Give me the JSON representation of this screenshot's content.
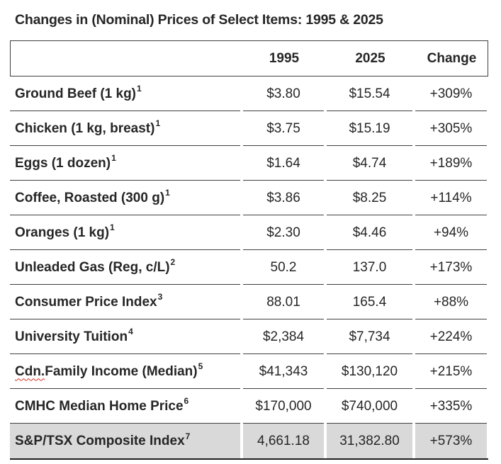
{
  "title": "Changes in (Nominal) Prices of Select Items: 1995 & 2025",
  "table": {
    "columns": [
      "",
      "1995",
      "2025",
      "Change"
    ],
    "rows": [
      {
        "flagged": "",
        "item": "Ground Beef (1 kg)",
        "footnote": "1",
        "v1995": "$3.80",
        "v2025": "$15.54",
        "change": "+309%"
      },
      {
        "flagged": "",
        "item": "Chicken (1 kg, breast)",
        "footnote": "1",
        "v1995": "$3.75",
        "v2025": "$15.19",
        "change": "+305%"
      },
      {
        "flagged": "",
        "item": "Eggs (1 dozen)",
        "footnote": "1",
        "v1995": "$1.64",
        "v2025": "$4.74",
        "change": "+189%"
      },
      {
        "flagged": "",
        "item": "Coffee, Roasted (300 g)",
        "footnote": "1",
        "v1995": "$3.86",
        "v2025": "$8.25",
        "change": "+114%"
      },
      {
        "flagged": "",
        "item": "Oranges (1 kg)",
        "footnote": "1",
        "v1995": "$2.30",
        "v2025": "$4.46",
        "change": "+94%"
      },
      {
        "flagged": "",
        "item": "Unleaded Gas (Reg, c/L)",
        "footnote": "2",
        "v1995": "50.2",
        "v2025": "137.0",
        "change": "+173%"
      },
      {
        "flagged": "",
        "item": "Consumer Price Index",
        "footnote": "3",
        "v1995": "88.01",
        "v2025": "165.4",
        "change": "+88%"
      },
      {
        "flagged": "",
        "item": "University Tuition",
        "footnote": "4",
        "v1995": "$2,384",
        "v2025": "$7,734",
        "change": "+224%"
      },
      {
        "flagged": "Cdn.",
        "item": " Family Income (Median)",
        "footnote": "5",
        "v1995": "$41,343",
        "v2025": "$130,120",
        "change": "+215%"
      },
      {
        "flagged": "",
        "item": "CMHC Median Home Price",
        "footnote": "6",
        "v1995": "$170,000",
        "v2025": "$740,000",
        "change": "+335%"
      },
      {
        "flagged": "",
        "item": "S&P/TSX Composite Index",
        "footnote": "7",
        "v1995": "4,661.18",
        "v2025": "31,382.80",
        "change": "+573%"
      }
    ],
    "highlight_row_index": 10
  },
  "colors": {
    "text": "#262626",
    "border": "#3f3f3f",
    "highlight_bg": "#d9d9d9",
    "bottom_bar": "#1f1f1f",
    "spellcheck_underline": "#d93025"
  }
}
